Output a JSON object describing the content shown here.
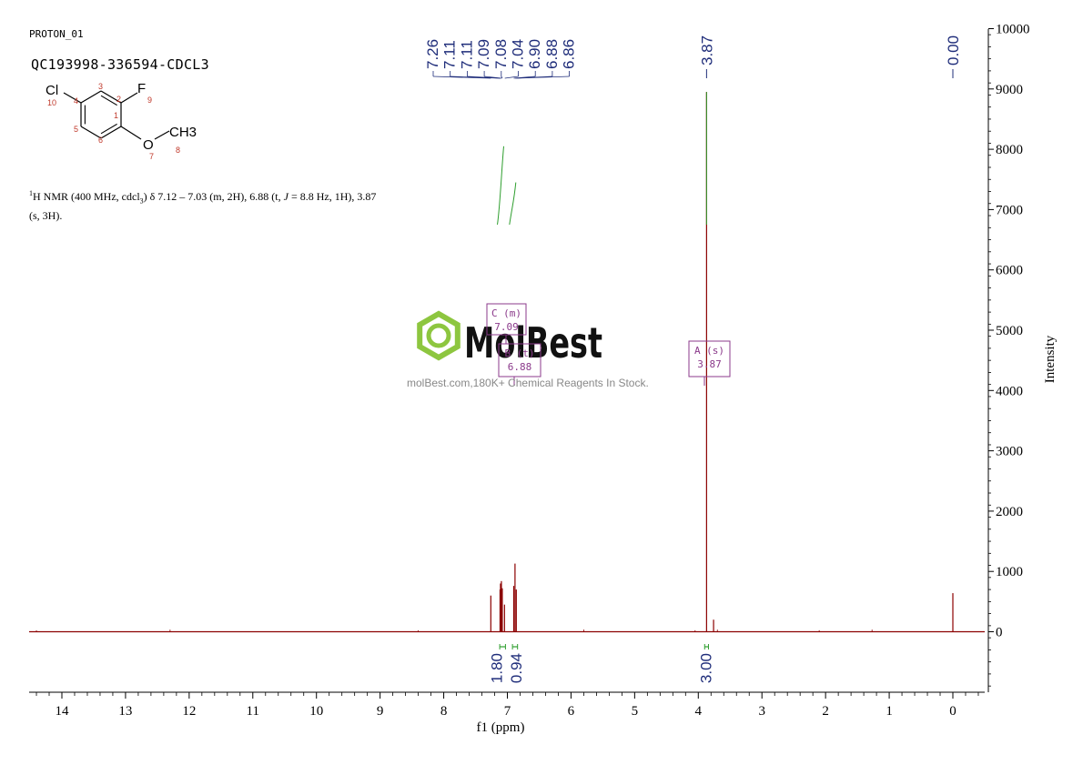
{
  "header": {
    "experiment": "PROTON_01",
    "sample": "QC193998-336594-CDCL3",
    "nmr_prefix": "H NMR (400 MHz, cdcl",
    "nmr_sup": "1",
    "nmr_sub": "3",
    "nmr_mid": ") δ 7.12 – 7.03 (m, 2H), 6.88 (t, ",
    "nmr_j": "J",
    "nmr_tail": " = 8.8 Hz, 1H), 3.87 (s, 3H)."
  },
  "structure": {
    "atoms": [
      "Cl",
      "F",
      "O",
      "CH3"
    ],
    "numbers": [
      "1",
      "2",
      "3",
      "4",
      "5",
      "6",
      "7",
      "8",
      "9",
      "10"
    ]
  },
  "watermark": {
    "brand": "MolBest",
    "tagline": "molBest.com,180K+ Chemical Reagents In Stock."
  },
  "colors": {
    "spectrum": "#8B0000",
    "peak_labels": "#1f2d7a",
    "integral": "#2e9e2e",
    "multiplet_box": "#8b3a8b",
    "watermark_green": "#8dc63f"
  },
  "chart_data": {
    "type": "line",
    "xlabel": "f1 (ppm)",
    "ylabel": "Intensity",
    "xlim": [
      14.6,
      -0.5
    ],
    "ylim": [
      -1000,
      10000
    ],
    "x_ticks": [
      14,
      13,
      12,
      11,
      10,
      9,
      8,
      7,
      6,
      5,
      4,
      3,
      2,
      1,
      0
    ],
    "y_ticks": [
      0,
      1000,
      2000,
      3000,
      4000,
      5000,
      6000,
      7000,
      8000,
      9000,
      10000
    ],
    "peak_labels": [
      "7.26",
      "7.11",
      "7.11",
      "7.09",
      "7.08",
      "7.04",
      "6.90",
      "6.88",
      "6.86",
      "3.87",
      "0.00"
    ],
    "peaks": [
      {
        "x": 7.26,
        "y": 600
      },
      {
        "x": 7.115,
        "y": 700
      },
      {
        "x": 7.108,
        "y": 800
      },
      {
        "x": 7.094,
        "y": 840
      },
      {
        "x": 7.08,
        "y": 720
      },
      {
        "x": 7.045,
        "y": 450
      },
      {
        "x": 6.9,
        "y": 760
      },
      {
        "x": 6.88,
        "y": 1130
      },
      {
        "x": 6.86,
        "y": 700
      },
      {
        "x": 3.87,
        "y": 8950
      },
      {
        "x": 3.76,
        "y": 200
      },
      {
        "x": 0.0,
        "y": 640
      }
    ],
    "integrals": [
      {
        "from": 7.12,
        "to": 7.03,
        "value": "1.80"
      },
      {
        "from": 6.92,
        "to": 6.84,
        "value": "0.94"
      },
      {
        "from": 3.9,
        "to": 3.84,
        "value": "3.00"
      }
    ],
    "integral_curves": [
      {
        "x": 7.1,
        "y_start": 6750,
        "y_end": 8050
      },
      {
        "x": 6.91,
        "y_start": 6750,
        "y_end": 7450
      },
      {
        "x": 3.87,
        "y_start": 6750,
        "y_end": 8950
      }
    ],
    "multiplets": [
      {
        "id": "C",
        "type": "(m)",
        "shift": "7.09"
      },
      {
        "id": "B",
        "type": "(t)",
        "shift": "6.88"
      },
      {
        "id": "A",
        "type": "(s)",
        "shift": "3.87"
      }
    ]
  }
}
